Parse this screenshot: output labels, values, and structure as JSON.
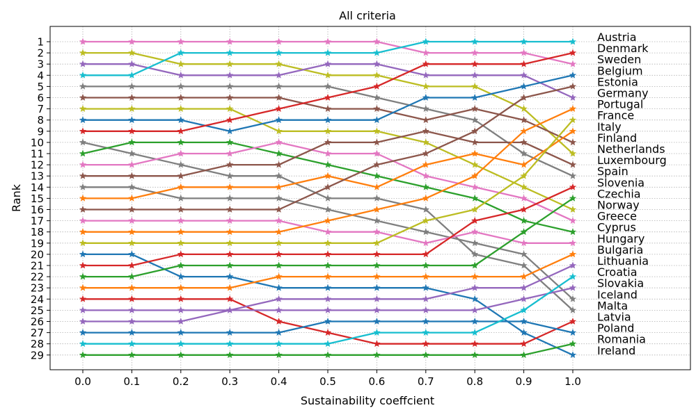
{
  "chart_data": {
    "type": "line",
    "title": "All criteria",
    "xlabel": "Sustainability coeffcient",
    "ylabel": "Rank",
    "x": [
      0.0,
      0.1,
      0.2,
      0.3,
      0.4,
      0.5,
      0.6,
      0.7,
      0.8,
      0.9,
      1.0
    ],
    "x_tick_labels": [
      "0.0",
      "0.1",
      "0.2",
      "0.3",
      "0.4",
      "0.5",
      "0.6",
      "0.7",
      "0.8",
      "0.9",
      "1.0"
    ],
    "y_tick_labels": [
      "1",
      "2",
      "3",
      "4",
      "5",
      "6",
      "7",
      "8",
      "9",
      "10",
      "11",
      "12",
      "13",
      "14",
      "15",
      "16",
      "17",
      "18",
      "19",
      "20",
      "21",
      "22",
      "23",
      "24",
      "25",
      "26",
      "27",
      "28",
      "29"
    ],
    "ylim": [
      0.0,
      30.0
    ],
    "y_inverted": true,
    "grid": true,
    "marker": "star",
    "end_labels": [
      "Austria",
      "Denmark",
      "Sweden",
      "Belgium",
      "Estonia",
      "Germany",
      "Portugal",
      "France",
      "Italy",
      "Finland",
      "Netherlands",
      "Luxembourg",
      "Spain",
      "Slovenia",
      "Czechia",
      "Norway",
      "Greece",
      "Cyprus",
      "Hungary",
      "Bulgaria",
      "Lithuania",
      "Croatia",
      "Slovakia",
      "Iceland",
      "Malta",
      "Latvia",
      "Poland",
      "Romania",
      "Ireland"
    ],
    "series": [
      {
        "color": "#e377c2",
        "values": [
          1,
          1,
          1,
          1,
          1,
          1,
          1,
          2,
          2,
          2,
          3
        ]
      },
      {
        "color": "#bcbd22",
        "values": [
          2,
          2,
          3,
          3,
          3,
          4,
          4,
          5,
          5,
          7,
          11
        ]
      },
      {
        "color": "#9467bd",
        "values": [
          3,
          3,
          4,
          4,
          4,
          3,
          3,
          4,
          4,
          4,
          6
        ]
      },
      {
        "color": "#17becf",
        "values": [
          4,
          4,
          2,
          2,
          2,
          2,
          2,
          1,
          1,
          1,
          1
        ]
      },
      {
        "color": "#7f7f7f",
        "values": [
          5,
          5,
          5,
          5,
          5,
          5,
          6,
          7,
          8,
          11,
          13
        ]
      },
      {
        "color": "#8c564b",
        "values": [
          6,
          6,
          6,
          6,
          6,
          7,
          7,
          8,
          7,
          8,
          10
        ]
      },
      {
        "color": "#bcbd22",
        "values": [
          7,
          7,
          7,
          7,
          9,
          9,
          9,
          10,
          12,
          14,
          16
        ]
      },
      {
        "color": "#1f77b4",
        "values": [
          8,
          8,
          8,
          9,
          8,
          8,
          8,
          6,
          6,
          5,
          4
        ]
      },
      {
        "color": "#d62728",
        "values": [
          9,
          9,
          9,
          8,
          7,
          6,
          5,
          3,
          3,
          3,
          2
        ]
      },
      {
        "color": "#7f7f7f",
        "values": [
          10,
          11,
          12,
          13,
          13,
          15,
          15,
          16,
          20,
          21,
          25
        ]
      },
      {
        "color": "#2ca02c",
        "values": [
          11,
          10,
          10,
          10,
          11,
          12,
          13,
          14,
          15,
          17,
          18
        ]
      },
      {
        "color": "#e377c2",
        "values": [
          12,
          12,
          11,
          11,
          10,
          11,
          11,
          13,
          14,
          15,
          17
        ]
      },
      {
        "color": "#8c564b",
        "values": [
          13,
          13,
          13,
          12,
          12,
          10,
          10,
          9,
          10,
          10,
          12
        ]
      },
      {
        "color": "#7f7f7f",
        "values": [
          14,
          14,
          15,
          15,
          15,
          16,
          17,
          18,
          19,
          20,
          24
        ]
      },
      {
        "color": "#ff7f0e",
        "values": [
          15,
          15,
          14,
          14,
          14,
          13,
          14,
          12,
          11,
          12,
          9
        ]
      },
      {
        "color": "#8c564b",
        "values": [
          16,
          16,
          16,
          16,
          16,
          14,
          12,
          11,
          9,
          6,
          5
        ]
      },
      {
        "color": "#e377c2",
        "values": [
          17,
          17,
          17,
          17,
          17,
          18,
          18,
          19,
          18,
          19,
          19
        ]
      },
      {
        "color": "#ff7f0e",
        "values": [
          18,
          18,
          18,
          18,
          18,
          17,
          16,
          15,
          13,
          9,
          7
        ]
      },
      {
        "color": "#bcbd22",
        "values": [
          19,
          19,
          19,
          19,
          19,
          19,
          19,
          17,
          16,
          13,
          8
        ]
      },
      {
        "color": "#1f77b4",
        "values": [
          20,
          20,
          22,
          22,
          23,
          23,
          23,
          23,
          24,
          27,
          29
        ]
      },
      {
        "color": "#d62728",
        "values": [
          21,
          21,
          20,
          20,
          20,
          20,
          20,
          20,
          17,
          16,
          14
        ]
      },
      {
        "color": "#2ca02c",
        "values": [
          22,
          22,
          21,
          21,
          21,
          21,
          21,
          21,
          21,
          18,
          15
        ]
      },
      {
        "color": "#ff7f0e",
        "values": [
          23,
          23,
          23,
          23,
          22,
          22,
          22,
          22,
          22,
          22,
          20
        ]
      },
      {
        "color": "#d62728",
        "values": [
          24,
          24,
          24,
          24,
          26,
          27,
          28,
          28,
          28,
          28,
          26
        ]
      },
      {
        "color": "#9467bd",
        "values": [
          25,
          25,
          25,
          25,
          24,
          24,
          24,
          24,
          23,
          23,
          21
        ]
      },
      {
        "color": "#9467bd",
        "values": [
          26,
          26,
          26,
          25,
          25,
          25,
          25,
          25,
          25,
          24,
          23
        ]
      },
      {
        "color": "#1f77b4",
        "values": [
          27,
          27,
          27,
          27,
          27,
          26,
          26,
          26,
          26,
          26,
          27
        ]
      },
      {
        "color": "#17becf",
        "values": [
          28,
          28,
          28,
          28,
          28,
          28,
          27,
          27,
          27,
          25,
          22
        ]
      },
      {
        "color": "#2ca02c",
        "values": [
          29,
          29,
          29,
          29,
          29,
          29,
          29,
          29,
          29,
          29,
          28
        ]
      }
    ]
  }
}
